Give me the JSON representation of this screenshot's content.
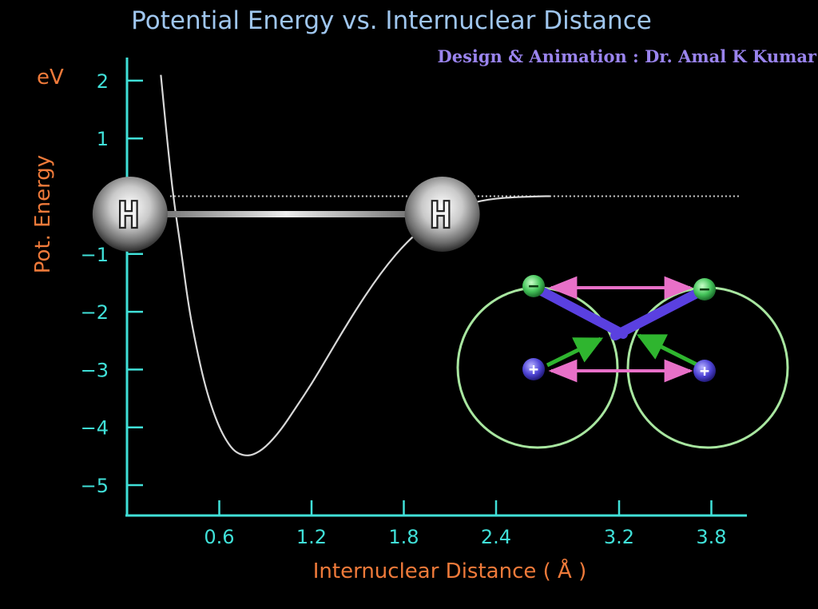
{
  "chart_data": {
    "type": "line",
    "title": "Potential Energy vs. Internuclear Distance",
    "credit": "Design & Animation : Dr. Amal K Kumar",
    "ylabel": "Pot. Energy",
    "yunit": "eV",
    "xlabel": "Internuclear Distance ( Å )",
    "xlim": [
      0,
      4.2
    ],
    "ylim": [
      -5.5,
      2.4
    ],
    "xticks": [
      0.6,
      1.2,
      1.8,
      2.4,
      3.2,
      3.8
    ],
    "yticks": [
      2,
      1,
      -1,
      -2,
      -3,
      -4,
      -5
    ],
    "series": [
      {
        "x": [
          0.22,
          0.26,
          0.3,
          0.35,
          0.4,
          0.45,
          0.5,
          0.55,
          0.6,
          0.65,
          0.7,
          0.76,
          0.82,
          0.9,
          1.0,
          1.1,
          1.2,
          1.3,
          1.4,
          1.5,
          1.6,
          1.7,
          1.8,
          1.9,
          2.0,
          2.1,
          2.2,
          2.3,
          2.4,
          2.5,
          2.6,
          2.7,
          2.75
        ],
        "y": [
          2.1,
          1.0,
          0.0,
          -0.9,
          -1.9,
          -2.6,
          -3.2,
          -3.65,
          -4.0,
          -4.25,
          -4.42,
          -4.49,
          -4.48,
          -4.35,
          -4.05,
          -3.65,
          -3.25,
          -2.8,
          -2.35,
          -1.92,
          -1.52,
          -1.16,
          -0.85,
          -0.6,
          -0.4,
          -0.25,
          -0.15,
          -0.08,
          -0.04,
          -0.02,
          -0.01,
          0.0,
          0.0
        ]
      }
    ],
    "reference_line": {
      "y": 0
    },
    "atoms": {
      "symbol": "H",
      "positions_x": [
        0.02,
        2.05
      ]
    },
    "inset": {
      "electron_sign": "−",
      "proton_sign": "+"
    }
  }
}
